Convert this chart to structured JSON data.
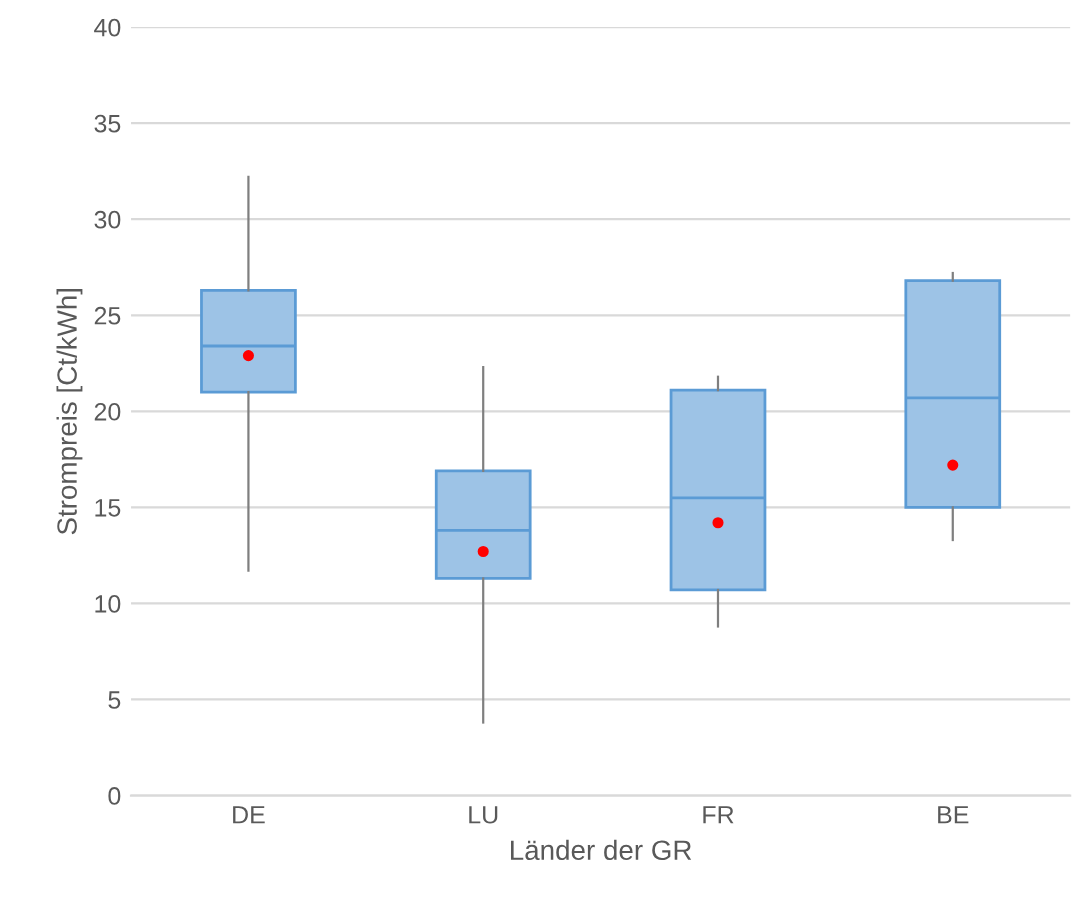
{
  "chart_data": {
    "type": "box",
    "xlabel": "Länder der GR",
    "ylabel": "Strompreis [Ct/kWh]",
    "categories": [
      "DE",
      "LU",
      "FR",
      "BE"
    ],
    "boxes": [
      {
        "low": 11.7,
        "q1": 21.0,
        "median": 23.4,
        "q3": 26.3,
        "high": 32.2,
        "mean": 22.9
      },
      {
        "low": 3.8,
        "q1": 11.3,
        "median": 13.8,
        "q3": 16.9,
        "high": 22.3,
        "mean": 12.7
      },
      {
        "low": 8.8,
        "q1": 10.7,
        "median": 15.5,
        "q3": 21.1,
        "high": 21.8,
        "mean": 14.2
      },
      {
        "low": 13.3,
        "q1": 15.0,
        "median": 20.7,
        "q3": 26.8,
        "high": 27.2,
        "mean": 17.2
      }
    ],
    "color": "#9dc3e6",
    "ylim": [
      0,
      40
    ],
    "yticks": [
      0,
      5,
      10,
      15,
      20,
      25,
      30,
      35,
      40
    ],
    "grid": "y"
  }
}
